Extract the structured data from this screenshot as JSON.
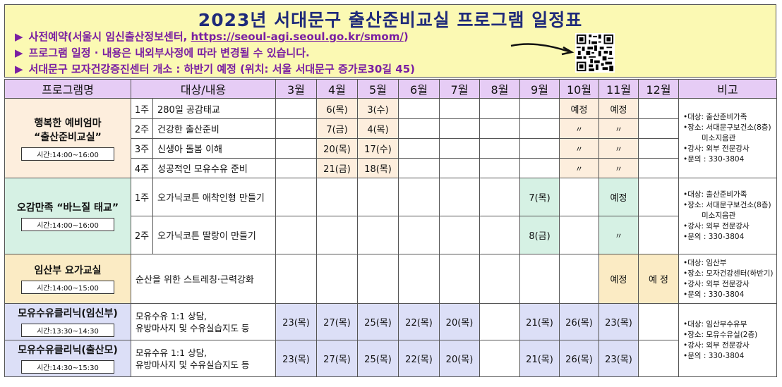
{
  "title": "2023년 서대문구 출산준비교실 프로그램 일정표",
  "notes": [
    "사전예약(서울시 임신출산정보센터, https://seoul-agi.seoul.go.kr/smom/)",
    "프로그램 일정 · 내용은 내외부사정에 따라 변경될 수 있습니다.",
    "서대문구 모자건강증진센터 개소 : 하반기 예정 (위치: 서울 서대문구 증가로30길 45)"
  ],
  "bullet": "▶",
  "headers": [
    "프로그램명",
    "대상/내용",
    "3월",
    "4월",
    "5월",
    "6월",
    "7월",
    "8월",
    "9월",
    "10월",
    "11월",
    "12월",
    "비고"
  ],
  "programs": {
    "p1": {
      "name_line1": "행복한 예비엄마",
      "name_line2": "“출산준비교실”",
      "time": "시간:14:00~16:00",
      "rows": [
        {
          "week": "1주",
          "topic": "280일 공감태교",
          "m4": "6(목)",
          "m5": "3(수)",
          "m10": "예정",
          "m11": "예정"
        },
        {
          "week": "2주",
          "topic": "건강한 출산준비",
          "m4": "7(금)",
          "m5": "4(목)",
          "m10": "〃",
          "m11": "〃"
        },
        {
          "week": "3주",
          "topic": "신생아 돌봄 이해",
          "m4": "20(목)",
          "m5": "17(수)",
          "m10": "〃",
          "m11": "〃"
        },
        {
          "week": "4주",
          "topic": "성공적인 모유수유 준비",
          "m4": "21(금)",
          "m5": "18(목)",
          "m10": "〃",
          "m11": "〃"
        }
      ],
      "note": [
        "•대상: 출산준비가족",
        "•장소: 서대문구보건소(8층)",
        "   미소지음관",
        "•강사: 외부 전문강사",
        "•문의 : 330-3804"
      ]
    },
    "p2": {
      "name": "오감만족 “바느질 태교”",
      "time": "시간:14:00~16:00",
      "rows": [
        {
          "week": "1주",
          "topic": "오가닉코튼 애착인형 만들기",
          "m9": "7(목)",
          "m11": "예정"
        },
        {
          "week": "2주",
          "topic": "오가닉코튼 딸랑이 만들기",
          "m9": "8(금)",
          "m11": "〃"
        }
      ],
      "note": [
        "•대상: 출산준비가족",
        "•장소: 서대문구보건소(8층)",
        "   미소지음관",
        "•강사: 외부 전문강사",
        "•문의 : 330-3804"
      ]
    },
    "p3": {
      "name": "임산부 요가교실",
      "time": "시간:14:00~15:00",
      "topic": "순산을 위한 스트레칭·근력강화",
      "m11": "예정",
      "m12": "예 정",
      "note": [
        "•대상: 임산부",
        "•장소: 모자건강센터(하반기)",
        "•강사: 외부 전문강사",
        "•문의 : 330-3804"
      ]
    },
    "p4": {
      "name": "모유수유클리닉(임신부)",
      "time": "시간:13:30~14:30",
      "topic_line1": "모유수유 1:1 상담,",
      "topic_line2": "유방마사지 및 수유실습지도 등",
      "dates": {
        "m3": "23(목)",
        "m4": "27(목)",
        "m5": "25(목)",
        "m6": "22(목)",
        "m7": "20(목)",
        "m8": "",
        "m9": "21(목)",
        "m10": "26(목)",
        "m11": "23(목)",
        "m12": ""
      }
    },
    "p5": {
      "name": "모유수유클리닉(출산모)",
      "time": "시간:14:30~15:30",
      "topic_line1": "모유수유 1:1 상담,",
      "topic_line2": "유방마사지 및 수유실습지도 등",
      "dates": {
        "m3": "23(목)",
        "m4": "27(목)",
        "m5": "25(목)",
        "m6": "22(목)",
        "m7": "20(목)",
        "m8": "",
        "m9": "21(목)",
        "m10": "26(목)",
        "m11": "23(목)",
        "m12": ""
      }
    },
    "p45_note": [
      "•대상: 임산부수유부",
      "•장소: 모유수유실(2층)",
      "•강사: 외부 전문강사",
      "•문의 : 330-3804"
    ]
  }
}
